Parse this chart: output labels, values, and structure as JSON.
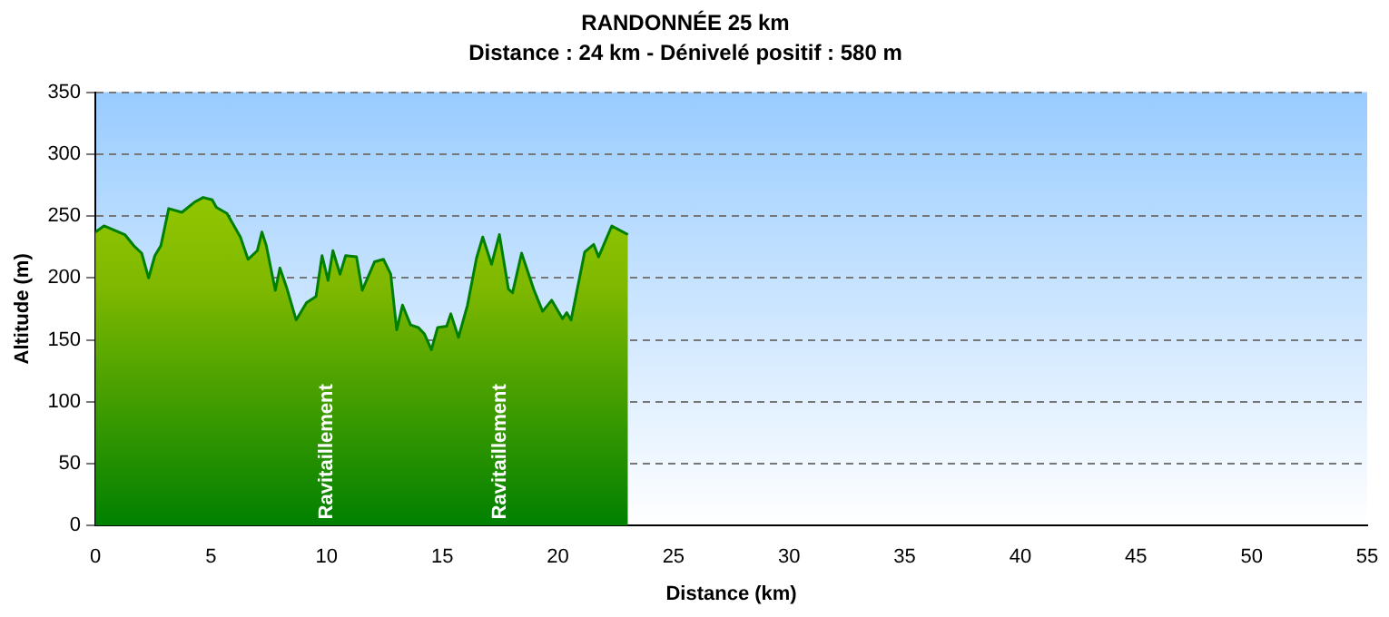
{
  "chart_data": {
    "type": "area",
    "title": "RANDONNÉE 25 km",
    "subtitle": "Distance : 24 km - Dénivelé positif : 580 m",
    "xlabel": "Distance (km)",
    "ylabel": "Altitude (m)",
    "xlim": [
      0,
      55
    ],
    "xticks": [
      0,
      5,
      10,
      15,
      20,
      25,
      30,
      35,
      40,
      45,
      50,
      55
    ],
    "ylim": [
      0,
      350
    ],
    "yticks": [
      0,
      50,
      100,
      150,
      200,
      250,
      300,
      350
    ],
    "grid": "y",
    "legend": false,
    "series": [
      {
        "color": "#008000",
        "x": [
          0,
          0.37,
          1.27,
          1.66,
          2.0,
          2.3,
          2.57,
          2.83,
          3.17,
          3.74,
          4.27,
          4.66,
          5.05,
          5.23,
          5.69,
          6.27,
          6.6,
          7.0,
          7.2,
          7.39,
          7.78,
          7.98,
          8.29,
          8.68,
          9.13,
          9.54,
          9.8,
          10.06,
          10.27,
          10.58,
          10.82,
          11.29,
          11.54,
          12.07,
          12.46,
          12.77,
          13.03,
          13.28,
          13.63,
          13.96,
          14.22,
          14.53,
          14.8,
          15.19,
          15.37,
          15.7,
          16.09,
          16.48,
          16.75,
          17.13,
          17.47,
          17.86,
          18.04,
          18.43,
          18.95,
          19.34,
          19.73,
          20.2,
          20.38,
          20.57,
          21.16,
          21.55,
          21.76,
          22.33,
          22.72,
          23.03
        ],
        "values": [
          237,
          242,
          235,
          226,
          220,
          200,
          218,
          226,
          256,
          253,
          261,
          265,
          263,
          257,
          252,
          233,
          215,
          222,
          237,
          226,
          190,
          208,
          191,
          166,
          180,
          185,
          218,
          198,
          222,
          203,
          218,
          217,
          190,
          213,
          215,
          203,
          158,
          178,
          162,
          160,
          155,
          142,
          160,
          161,
          171,
          152,
          178,
          216,
          233,
          211,
          235,
          191,
          188,
          220,
          191,
          173,
          182,
          167,
          172,
          166,
          221,
          227,
          217,
          242,
          238,
          235
        ]
      }
    ],
    "annotations": [
      {
        "text": "Ravitaillement",
        "x": 10,
        "y": 5
      },
      {
        "text": "Ravitaillement",
        "x": 17.5,
        "y": 5
      }
    ]
  }
}
